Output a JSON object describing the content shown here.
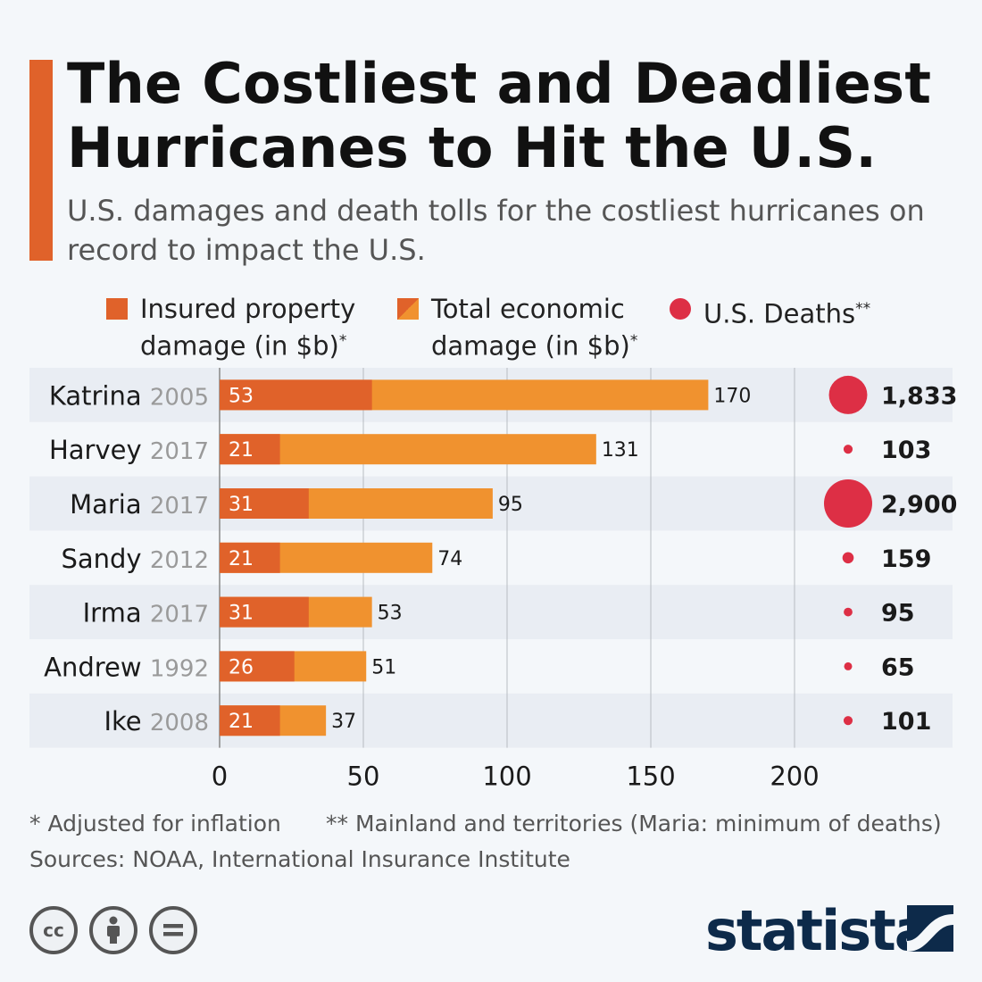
{
  "title": "The Costliest and Deadliest Hurricanes to Hit the U.S.",
  "subtitle": "U.S. damages and death tolls for the costliest hurricanes on record to impact the U.S.",
  "legend": {
    "insured_line1": "Insured property",
    "insured_line2": "damage (in $b)",
    "insured_mark": "*",
    "total_line1": "Total economic",
    "total_line2": "damage (in $b)",
    "total_mark": "*",
    "deaths": "U.S. Deaths",
    "deaths_mark": "**"
  },
  "footnotes": {
    "inflation": "* Adjusted for inflation",
    "territories": "** Mainland and territories (Maria: minimum of deaths)",
    "sources": "Sources: NOAA, International Insurance Institute"
  },
  "license_icons": [
    "cc-icon",
    "by-person-icon",
    "nd-equals-icon"
  ],
  "brand": "statista",
  "colors": {
    "accent": "#e0622a",
    "insured": "#e0622a",
    "total": "#f0922f",
    "deaths": "#dd2f45",
    "row_band": "#e9edf3",
    "grid": "#b8bcc2"
  },
  "chart_data": {
    "type": "bar",
    "orientation": "horizontal",
    "categories": [
      "Katrina",
      "Harvey",
      "Maria",
      "Sandy",
      "Irma",
      "Andrew",
      "Ike"
    ],
    "years": [
      "2005",
      "2017",
      "2017",
      "2012",
      "2017",
      "1992",
      "2008"
    ],
    "series": [
      {
        "name": "Insured property damage (in $b)",
        "values": [
          53,
          21,
          31,
          21,
          31,
          26,
          21
        ]
      },
      {
        "name": "Total economic damage (in $b)",
        "values": [
          170,
          131,
          95,
          74,
          53,
          51,
          37
        ]
      }
    ],
    "deaths": {
      "name": "U.S. Deaths",
      "values": [
        1833,
        103,
        2900,
        159,
        95,
        65,
        101
      ],
      "labels": [
        "1,833",
        "103",
        "2,900",
        "159",
        "95",
        "65",
        "101"
      ]
    },
    "xlim": [
      0,
      200
    ],
    "xticks": [
      0,
      50,
      100,
      150,
      200
    ],
    "grid": true,
    "legend_position": "top"
  }
}
